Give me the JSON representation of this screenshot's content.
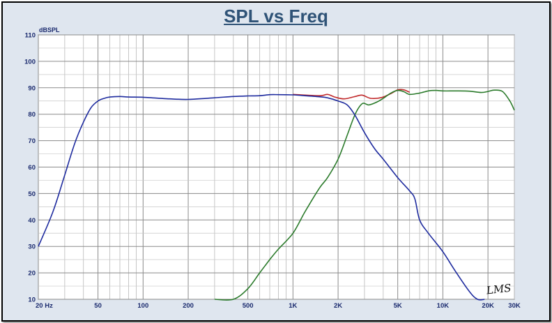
{
  "chart_data": {
    "type": "line",
    "title": "SPL vs Freq",
    "ylabel": "dBSPL",
    "xlabel": "",
    "x_scale": "log",
    "xlim": [
      20,
      30000
    ],
    "ylim": [
      10,
      110
    ],
    "grid": true,
    "legend": "none",
    "x_ticks": [
      {
        "v": 20,
        "label": "20  Hz"
      },
      {
        "v": 50,
        "label": "50"
      },
      {
        "v": 100,
        "label": "100"
      },
      {
        "v": 200,
        "label": "200"
      },
      {
        "v": 500,
        "label": "500"
      },
      {
        "v": 1000,
        "label": "1K"
      },
      {
        "v": 2000,
        "label": "2K"
      },
      {
        "v": 5000,
        "label": "5K"
      },
      {
        "v": 10000,
        "label": "10K"
      },
      {
        "v": 20000,
        "label": "20K"
      },
      {
        "v": 30000,
        "label": "30K"
      }
    ],
    "y_ticks": [
      10,
      20,
      30,
      40,
      50,
      60,
      70,
      80,
      90,
      100,
      110
    ],
    "watermark": "LMS",
    "series": [
      {
        "color": "#c0282a",
        "x": [
          1000,
          1500,
          1700,
          1900,
          2200,
          2600,
          2900,
          3300,
          3900,
          4500,
          5000,
          5500,
          6000
        ],
        "y": [
          87.5,
          87,
          87.5,
          86.5,
          85.8,
          86.7,
          87.2,
          86.0,
          86.3,
          87.8,
          89.2,
          89.2,
          88.3
        ]
      },
      {
        "color": "#2a7a2a",
        "x": [
          300,
          400,
          500,
          600,
          700,
          800,
          1000,
          1200,
          1500,
          1700,
          2000,
          2300,
          2600,
          2900,
          3200,
          3600,
          4000,
          4500,
          5000,
          5500,
          6000,
          7000,
          8000,
          9000,
          10000,
          12000,
          15000,
          18000,
          20000,
          22000,
          25000,
          28000,
          30000
        ],
        "y": [
          10,
          10,
          14,
          20,
          25,
          29,
          35,
          43,
          52,
          56,
          63,
          72,
          80,
          84,
          83.5,
          84.5,
          86,
          88,
          89,
          88.5,
          87.5,
          88,
          88.8,
          89,
          88.8,
          88.8,
          88.7,
          88.2,
          88.6,
          89.1,
          88.6,
          85,
          81.5
        ]
      },
      {
        "color": "#1d2a9e",
        "x": [
          20,
          25,
          30,
          35,
          40,
          45,
          50,
          55,
          60,
          70,
          80,
          100,
          150,
          200,
          300,
          400,
          500,
          600,
          700,
          800,
          1000,
          1200,
          1500,
          1700,
          2000,
          2300,
          2600,
          3000,
          3500,
          4000,
          5000,
          6000,
          6500,
          7000,
          8000,
          10000,
          12000,
          15000,
          17000,
          19000
        ],
        "y": [
          30,
          43,
          57,
          69,
          77,
          82.5,
          85,
          86,
          86.5,
          86.7,
          86.5,
          86.4,
          85.8,
          85.6,
          86.2,
          86.7,
          86.9,
          87,
          87.4,
          87.4,
          87.3,
          87,
          86.6,
          86.2,
          85,
          83.5,
          79.5,
          73,
          67,
          63,
          56,
          51,
          48,
          40,
          35,
          28,
          21,
          13,
          10,
          10
        ]
      }
    ]
  }
}
